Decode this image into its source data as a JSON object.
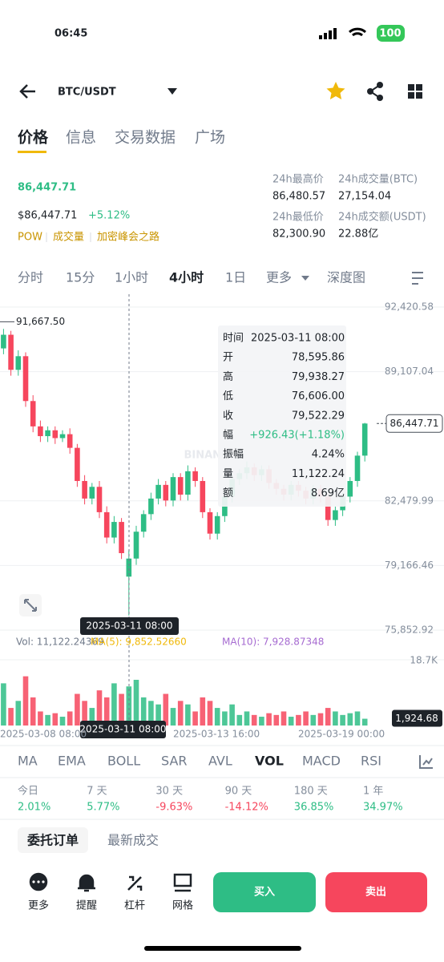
{
  "status": {
    "time": "06:45",
    "battery": "100"
  },
  "header": {
    "pair": "BTC/USDT"
  },
  "tabs": [
    "价格",
    "信息",
    "交易数据",
    "广场"
  ],
  "price": {
    "last": "86,447.71",
    "usd": "$86,447.71",
    "change": "+5.12%",
    "tags": [
      "POW",
      "成交量",
      "加密峰会之路"
    ]
  },
  "stats": [
    {
      "label": "24h最高价",
      "value": "86,480.57"
    },
    {
      "label": "24h成交量(BTC)",
      "value": "27,154.04"
    },
    {
      "label": "24h最低价",
      "value": "82,300.90"
    },
    {
      "label": "24h成交额(USDT)",
      "value": "22.88亿"
    }
  ],
  "intervals": [
    "分时",
    "15分",
    "1小时",
    "4小时",
    "1日",
    "更多",
    "深度图"
  ],
  "chart_data": {
    "type": "candlestick",
    "open": [
      90600,
      91200,
      90300,
      91000,
      89200,
      89900,
      87600,
      86300,
      85800,
      86100,
      85700,
      85900,
      85200,
      83500,
      82600,
      83200,
      81900,
      80600,
      81400,
      78595.86,
      79522.29,
      80900,
      81800,
      82600,
      83300,
      82500,
      83700,
      82800,
      84000,
      83500,
      81900,
      80800,
      81700,
      82700,
      83600,
      83900,
      84200,
      83800,
      84100,
      83400,
      83100,
      82800,
      83300,
      83000,
      82600,
      83100,
      82700,
      81500,
      82000,
      82700,
      83500,
      84800
    ],
    "high": [
      91667.5,
      91400,
      91300,
      91200,
      90200,
      90100,
      87900,
      86600,
      86300,
      86300,
      86100,
      86200,
      85400,
      83800,
      83400,
      83500,
      82200,
      81700,
      81600,
      79938.27,
      81200,
      82000,
      82900,
      83600,
      83500,
      83900,
      83900,
      84300,
      84200,
      83700,
      82100,
      81900,
      83000,
      83900,
      84100,
      84500,
      84400,
      84300,
      84300,
      83600,
      83300,
      83500,
      83500,
      83200,
      83300,
      83300,
      82900,
      82200,
      82900,
      83700,
      85000,
      86480.57
    ],
    "low": [
      90300,
      90000,
      90000,
      88900,
      88900,
      87300,
      86000,
      85500,
      85500,
      85400,
      85500,
      84900,
      83200,
      82300,
      82300,
      81600,
      80300,
      80300,
      79500,
      76606,
      79200,
      80600,
      81500,
      82300,
      82200,
      82200,
      82500,
      82500,
      83200,
      81600,
      80500,
      80500,
      81400,
      82400,
      83300,
      83600,
      83500,
      83500,
      83100,
      82800,
      82500,
      82500,
      82700,
      82300,
      82300,
      82400,
      81200,
      81200,
      81700,
      82400,
      83200,
      84500
    ],
    "close": [
      91200,
      90300,
      91000,
      89200,
      89900,
      87600,
      86300,
      85800,
      86100,
      85700,
      85900,
      85200,
      83500,
      82600,
      83200,
      81900,
      80600,
      81400,
      79800,
      79522.29,
      80900,
      81800,
      82600,
      83300,
      82500,
      83700,
      82800,
      84000,
      83500,
      81900,
      80800,
      81700,
      82700,
      83600,
      83900,
      84200,
      83800,
      84100,
      83400,
      83100,
      82800,
      83300,
      83000,
      82600,
      83100,
      82700,
      81500,
      82000,
      82700,
      83500,
      84800,
      86447.71
    ],
    "volume": [
      9000,
      6000,
      12000,
      5000,
      7000,
      14000,
      8000,
      4000,
      3000,
      3500,
      2500,
      4000,
      9000,
      7000,
      5000,
      10000,
      8000,
      12000,
      9000,
      11122.24,
      13000,
      8000,
      7000,
      6000,
      9000,
      5000,
      7000,
      6000,
      4000,
      8000,
      7000,
      5000,
      4000,
      6000,
      3000,
      4000,
      3000,
      2500,
      3500,
      3000,
      4000,
      2500,
      3000,
      4000,
      3000,
      3500,
      5000,
      4000,
      3000,
      3500,
      4000,
      1924.68
    ],
    "up_color": "#2ebd85",
    "down_color": "#f6465d",
    "ylim": [
      75852.92,
      92420.58
    ],
    "yticks": [
      {
        "value": 92420.58,
        "label": "92,420.58"
      },
      {
        "value": 89107.04,
        "label": "89,107.04"
      },
      {
        "value": 82479.99,
        "label": "82,479.99"
      },
      {
        "value": 79166.46,
        "label": "79,166.46"
      },
      {
        "value": 75852.92,
        "label": "75,852.92"
      }
    ],
    "vlim": [
      0,
      18700
    ],
    "vticks": [
      {
        "value": 18700,
        "label": "18.7K"
      }
    ],
    "high_marker": {
      "value": 91667.5,
      "label": "91,667.50"
    },
    "last_marker": {
      "value": 86447.71,
      "label": "86,447.71"
    },
    "volume_marker": {
      "value": 1924.68,
      "label": "1,924.68"
    },
    "crosshair": "2025-03-11 08:00",
    "xlabels": [
      "2025-03-08 08:00",
      "2025-03-13 16:00",
      "2025-03-19 00:00"
    ],
    "vol_legend": [
      "Vol: 11,122.24369",
      "MA(5): 9,852.52660",
      "MA(10): 7,928.87348"
    ],
    "tooltip": [
      {
        "label": "时间",
        "value": "2025-03-11 08:00"
      },
      {
        "label": "开",
        "value": "78,595.86"
      },
      {
        "label": "高",
        "value": "79,938.27"
      },
      {
        "label": "低",
        "value": "76,606.00"
      },
      {
        "label": "收",
        "value": "79,522.29"
      },
      {
        "label": "幅",
        "value": "+926.43(+1.18%)"
      },
      {
        "label": "振幅",
        "value": "4.24%"
      },
      {
        "label": "量",
        "value": "11,122.24"
      },
      {
        "label": "额",
        "value": "8.69亿"
      }
    ]
  },
  "indicators": [
    "MA",
    "EMA",
    "BOLL",
    "SAR",
    "AVL",
    "VOL",
    "MACD",
    "RSI"
  ],
  "performance": [
    {
      "label": "今日",
      "value": "2.01%"
    },
    {
      "label": "7 天",
      "value": "5.77%"
    },
    {
      "label": "30 天",
      "value": "-9.63%"
    },
    {
      "label": "90 天",
      "value": "-14.12%"
    },
    {
      "label": "180 天",
      "value": "36.85%"
    },
    {
      "label": "1 年",
      "value": "34.97%"
    }
  ],
  "order_tabs": [
    "委托订单",
    "最新成交"
  ],
  "toolbar": [
    "更多",
    "提醒",
    "杠杆",
    "网格"
  ],
  "buttons": {
    "buy": "买入",
    "sell": "卖出"
  }
}
